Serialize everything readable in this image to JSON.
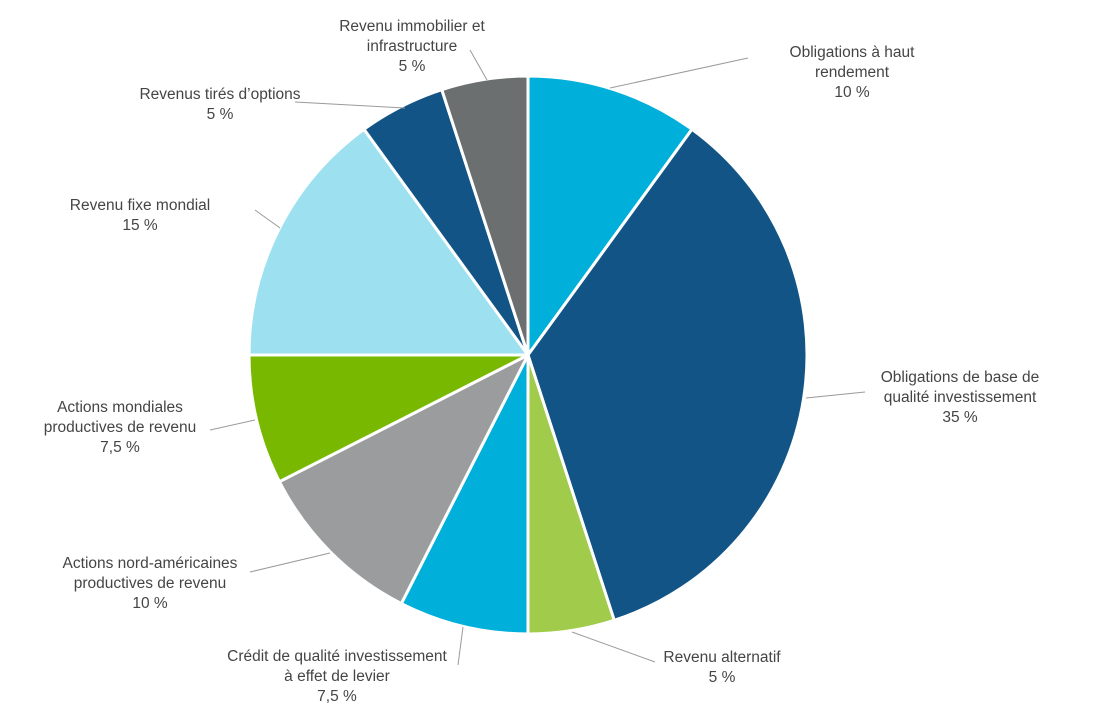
{
  "chart_data": {
    "type": "pie",
    "start_angle": "12 o'clock",
    "direction": "clockwise",
    "legend": "none",
    "slices": [
      {
        "label": [
          "Obligations à haut",
          "rendement"
        ],
        "value": 10,
        "value_label": "10 %",
        "color": "#00AFDA"
      },
      {
        "label": [
          "Obligations de base de",
          "qualité investissement"
        ],
        "value": 35,
        "value_label": "35 %",
        "color": "#135486"
      },
      {
        "label": [
          "Revenu alternatif"
        ],
        "value": 5,
        "value_label": "5 %",
        "color": "#A0CB4B"
      },
      {
        "label": [
          "Crédit de qualité investissement",
          "à effet de levier"
        ],
        "value": 7.5,
        "value_label": "7,5 %",
        "color": "#00AFDA"
      },
      {
        "label": [
          "Actions nord-américaines",
          "productives de revenu"
        ],
        "value": 10,
        "value_label": "10 %",
        "color": "#9B9C9D"
      },
      {
        "label": [
          "Actions mondiales",
          "productives de revenu"
        ],
        "value": 7.5,
        "value_label": "7,5 %",
        "color": "#78B800"
      },
      {
        "label": [
          "Revenu fixe mondial"
        ],
        "value": 15,
        "value_label": "15 %",
        "color": "#9DE0EF"
      },
      {
        "label": [
          "Revenus tirés d’options"
        ],
        "value": 5,
        "value_label": "5 %",
        "color": "#135486"
      },
      {
        "label": [
          "Revenu immobilier et",
          "infrastructure"
        ],
        "value": 5,
        "value_label": "5 %",
        "color": "#6C6F70"
      }
    ]
  }
}
